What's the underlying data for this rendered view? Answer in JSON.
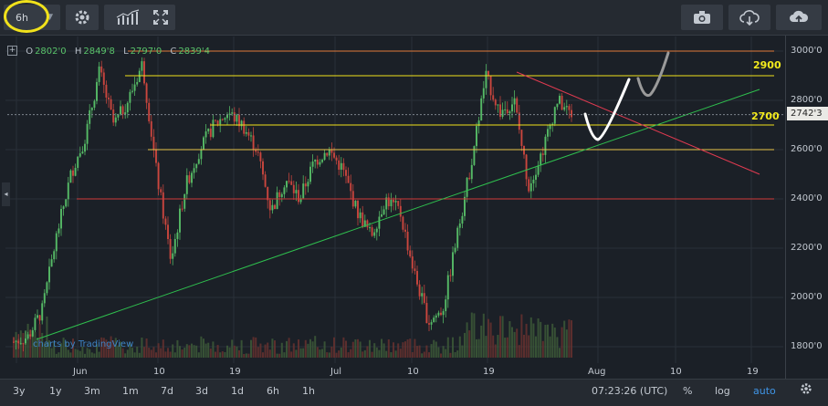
{
  "toolbar": {
    "interval": "6h",
    "buttons": [
      "gear-icon",
      "indicators-icon",
      "fullscreen-icon"
    ],
    "right_buttons": [
      "camera-icon",
      "cloud-download-icon",
      "cloud-upload-icon"
    ]
  },
  "legend": {
    "o_label": "O",
    "o_value": "2802'0",
    "h_label": "H",
    "h_value": "2849'8",
    "l_label": "L",
    "l_value": "2797'0",
    "c_label": "C",
    "c_value": "2839'4"
  },
  "y_axis": {
    "labels": [
      "3000'0",
      "2800'0",
      "2600'0",
      "2400'0",
      "2200'0",
      "2000'0",
      "1800'0"
    ],
    "last_price": "2742'3"
  },
  "annotations": {
    "level_high": "2900",
    "level_mid": "2700"
  },
  "x_axis": {
    "labels": [
      "Jun",
      "10",
      "19",
      "Jul",
      "10",
      "19",
      "Aug",
      "10",
      "19"
    ]
  },
  "watermark": "charts by TradingView",
  "bottom": {
    "ranges": [
      "3y",
      "1y",
      "3m",
      "1m",
      "7d",
      "3d",
      "1d",
      "6h",
      "1h"
    ],
    "time": "07:23:26 (UTC)",
    "percent": "%",
    "log": "log",
    "auto": "auto"
  },
  "colors": {
    "up": "#59c36a",
    "down": "#d2483f",
    "support": "#d03a3a",
    "resistance": "#f1e21b",
    "trend": "#2fbf4e",
    "accent": "#3f95e6"
  },
  "chart_data": {
    "type": "candlestick",
    "ylim": [
      1800,
      3000
    ],
    "y_ticks": [
      1800,
      2000,
      2200,
      2400,
      2600,
      2800,
      3000
    ],
    "x_ticks": [
      "Jun",
      "10",
      "19",
      "Jul",
      "10",
      "19",
      "Aug",
      "10",
      "19"
    ],
    "horizontal_levels": [
      3000,
      2900,
      2700,
      2600,
      2400
    ],
    "last_price": 2742.3,
    "ohlc_last": {
      "open": 2802.0,
      "high": 2849.8,
      "low": 2797.0,
      "close": 2839.4
    },
    "series": [
      {
        "name": "price",
        "values": [
          1820,
          1840,
          1950,
          2250,
          2500,
          2650,
          2920,
          2700,
          2800,
          2950,
          2500,
          2150,
          2450,
          2600,
          2700,
          2750,
          2700,
          2600,
          2350,
          2480,
          2400,
          2550,
          2600,
          2520,
          2350,
          2250,
          2400,
          2350,
          2100,
          1900,
          1950,
          2250,
          2550,
          2900,
          2750,
          2800,
          2450,
          2600,
          2800,
          2742
        ]
      }
    ]
  }
}
